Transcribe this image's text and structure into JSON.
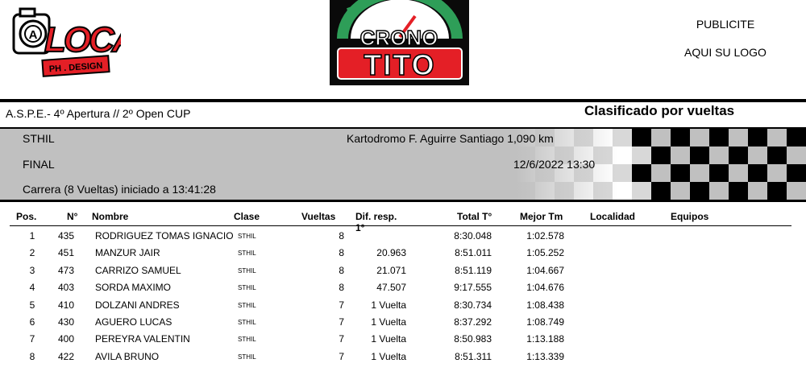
{
  "logos": {
    "loca": {
      "letters": "LOCA",
      "sub": "PH . DESIGN",
      "mark": "A"
    },
    "crono": {
      "line1": "CRONO",
      "line2": "TITO"
    }
  },
  "publicity": {
    "line1": "PUBLICITE",
    "line2": "AQUI SU LOGO"
  },
  "event": {
    "title": "A.S.P.E.- 4º Apertura // 2º Open CUP",
    "sort_label": "Clasificado por vueltas",
    "category": "STHIL",
    "track": "Kartodromo F. Aguirre Santiago 1,090 km",
    "session": "FINAL",
    "datetime": "12/6/2022 13:30",
    "race_info": "Carrera (8 Vueltas) iniciado a 13:41:28"
  },
  "table": {
    "headers": {
      "pos": "Pos.",
      "num": "N°",
      "name": "Nombre",
      "clase": "Clase",
      "vueltas": "Vueltas",
      "dif": "Dif. resp. 1°",
      "total": "Total T°",
      "best": "Mejor Tm",
      "localidad": "Localidad",
      "equipos": "Equipos"
    },
    "rows": [
      {
        "pos": "1",
        "num": "435",
        "name": "RODRIGUEZ TOMAS IGNACIO",
        "clase": "STHIL",
        "vueltas": "8",
        "dif": "",
        "total": "8:30.048",
        "best": "1:02.578"
      },
      {
        "pos": "2",
        "num": "451",
        "name": "MANZUR JAIR",
        "clase": "STHIL",
        "vueltas": "8",
        "dif": "20.963",
        "total": "8:51.011",
        "best": "1:05.252"
      },
      {
        "pos": "3",
        "num": "473",
        "name": "CARRIZO SAMUEL",
        "clase": "STHIL",
        "vueltas": "8",
        "dif": "21.071",
        "total": "8:51.119",
        "best": "1:04.667"
      },
      {
        "pos": "4",
        "num": "403",
        "name": "SORDA MAXIMO",
        "clase": "STHIL",
        "vueltas": "8",
        "dif": "47.507",
        "total": "9:17.555",
        "best": "1:04.676"
      },
      {
        "pos": "5",
        "num": "410",
        "name": "DOLZANI ANDRES",
        "clase": "STHIL",
        "vueltas": "7",
        "dif": "1 Vuelta",
        "total": "8:30.734",
        "best": "1:08.438"
      },
      {
        "pos": "6",
        "num": "430",
        "name": "AGUERO LUCAS",
        "clase": "STHIL",
        "vueltas": "7",
        "dif": "1 Vuelta",
        "total": "8:37.292",
        "best": "1:08.749"
      },
      {
        "pos": "7",
        "num": "400",
        "name": "PEREYRA VALENTIN",
        "clase": "STHIL",
        "vueltas": "7",
        "dif": "1 Vuelta",
        "total": "8:50.983",
        "best": "1:13.188"
      },
      {
        "pos": "8",
        "num": "422",
        "name": "AVILA BRUNO",
        "clase": "STHIL",
        "vueltas": "7",
        "dif": "1 Vuelta",
        "total": "8:51.311",
        "best": "1:13.339"
      }
    ]
  },
  "colors": {
    "logo_red": "#e41f26",
    "crono_green": "#2e9e58",
    "band_grey": "#c0c0c0"
  }
}
